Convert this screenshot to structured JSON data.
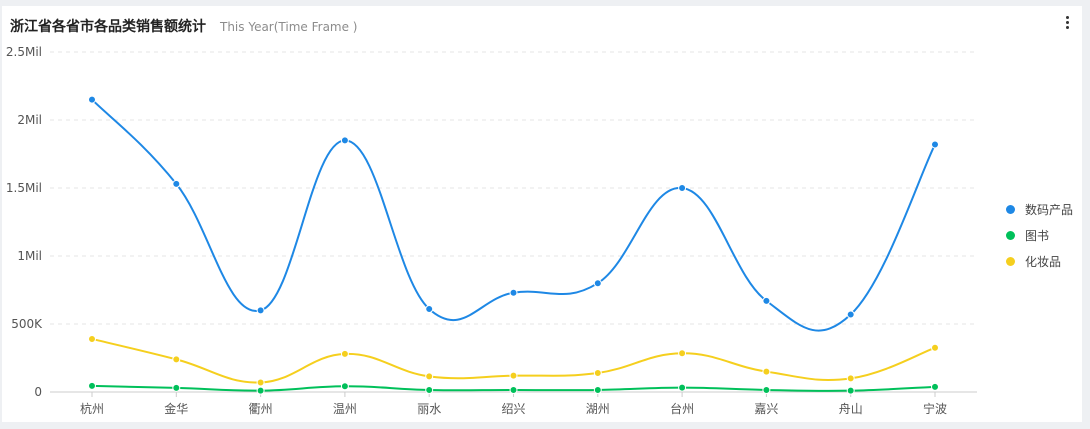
{
  "header": {
    "title": "浙江省各省市各品类销售额统计",
    "time_frame": "This Year(Time Frame )"
  },
  "menu": {
    "icon": "more-vertical-icon"
  },
  "colors": {
    "grid": "#e6e6e6",
    "axis": "#cccccc",
    "tick_label": "#555555"
  },
  "chart_data": {
    "type": "line",
    "smooth": true,
    "categories": [
      "杭州",
      "金华",
      "衢州",
      "温州",
      "丽水",
      "绍兴",
      "湖州",
      "台州",
      "嘉兴",
      "舟山",
      "宁波"
    ],
    "ylim": [
      0,
      2500000
    ],
    "yticks": [
      {
        "value": 0,
        "label": "0"
      },
      {
        "value": 500000,
        "label": "500K"
      },
      {
        "value": 1000000,
        "label": "1Mil"
      },
      {
        "value": 1500000,
        "label": "1.5Mil"
      },
      {
        "value": 2000000,
        "label": "2Mil"
      },
      {
        "value": 2500000,
        "label": "2.5Mil"
      }
    ],
    "grid": true,
    "legend_position": "right",
    "series": [
      {
        "name": "数码产品",
        "color": "#1e88e5",
        "values": [
          2150000,
          1530000,
          600000,
          1850000,
          610000,
          730000,
          800000,
          1500000,
          670000,
          570000,
          1820000
        ]
      },
      {
        "name": "图书",
        "color": "#00c05a",
        "values": [
          45000,
          30000,
          10000,
          42000,
          15000,
          15000,
          15000,
          32000,
          15000,
          10000,
          38000
        ]
      },
      {
        "name": "化妆品",
        "color": "#f5cf1e",
        "values": [
          390000,
          240000,
          70000,
          280000,
          115000,
          120000,
          140000,
          285000,
          150000,
          100000,
          325000
        ]
      }
    ]
  }
}
